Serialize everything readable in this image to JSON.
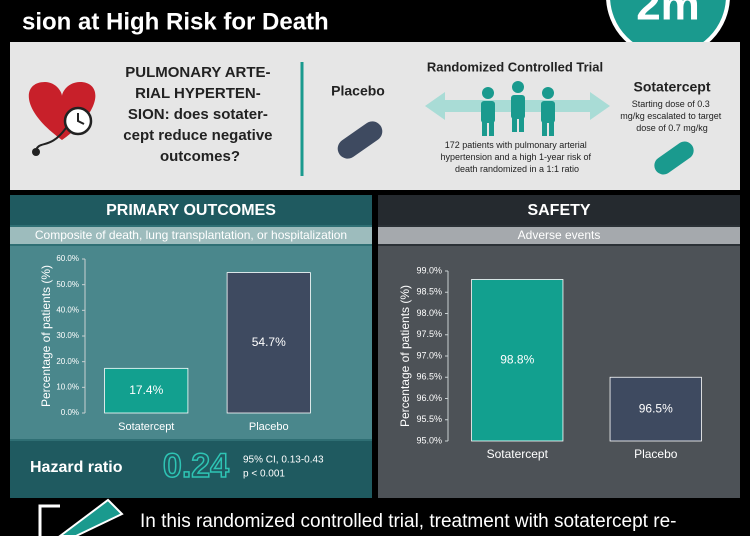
{
  "header": {
    "title": "sion at High Risk for Death",
    "logo": "2m"
  },
  "intro": {
    "question_lines": [
      "PULMONARY ARTE-",
      "RIAL HYPERTEN-",
      "SION: does sotater-",
      "cept reduce negative",
      "outcomes?"
    ],
    "placebo": "Placebo",
    "trial_title": "Randomized Controlled Trial",
    "trial_lines": [
      "172 patients with pulmonary arterial",
      "hypertension and a high 1-year risk of",
      "death randomized in a 1:1 ratio"
    ],
    "sotatercept": "Sotatercept",
    "dose_lines": [
      "Starting dose of 0.3",
      "mg/kg escalated to target",
      "dose of 0.7 mg/kg"
    ]
  },
  "chart_data": [
    {
      "type": "bar",
      "title": "PRIMARY OUTCOMES",
      "subtitle": "Composite of death, lung transplantation, or hospitalization",
      "y_label": "Percentage of patients (%)",
      "categories": [
        "Sotatercept",
        "Placebo"
      ],
      "values": [
        17.4,
        54.7
      ],
      "value_labels": [
        "17.4%",
        "54.7%"
      ],
      "colors": [
        "#12a08f",
        "#3e4a60"
      ],
      "ylim": [
        0,
        60
      ],
      "yticks": [
        {
          "value": 0,
          "label": "0.0%"
        },
        {
          "value": 10,
          "label": "10.0%"
        },
        {
          "value": 20,
          "label": "20.0%"
        },
        {
          "value": 30,
          "label": "30.0%"
        },
        {
          "value": 40,
          "label": "40.0%"
        },
        {
          "value": 50,
          "label": "50.0%"
        },
        {
          "value": 60,
          "label": "60.0%"
        }
      ]
    },
    {
      "type": "bar",
      "title": "SAFETY",
      "subtitle": "Adverse events",
      "y_label": "Percentage of patients (%)",
      "categories": [
        "Sotatercept",
        "Placebo"
      ],
      "values": [
        98.8,
        96.5
      ],
      "value_labels": [
        "98.8%",
        "96.5%"
      ],
      "colors": [
        "#12a08f",
        "#3e4a60"
      ],
      "ylim": [
        95,
        99
      ],
      "yticks": [
        {
          "value": 95,
          "label": "95.0%"
        },
        {
          "value": 95.5,
          "label": "95.5%"
        },
        {
          "value": 96,
          "label": "96.0%"
        },
        {
          "value": 96.5,
          "label": "96.5%"
        },
        {
          "value": 97,
          "label": "97.0%"
        },
        {
          "value": 97.5,
          "label": "97.5%"
        },
        {
          "value": 98,
          "label": "98.0%"
        },
        {
          "value": 98.5,
          "label": "98.5%"
        },
        {
          "value": 99,
          "label": "99.0%"
        }
      ]
    }
  ],
  "hazard": {
    "label": "Hazard ratio",
    "value": "0.24",
    "ci": "95% CI, 0.13-0.43",
    "p": "p < 0.001"
  },
  "footer": {
    "text": "In this randomized controlled trial, treatment with sotatercept re-"
  }
}
